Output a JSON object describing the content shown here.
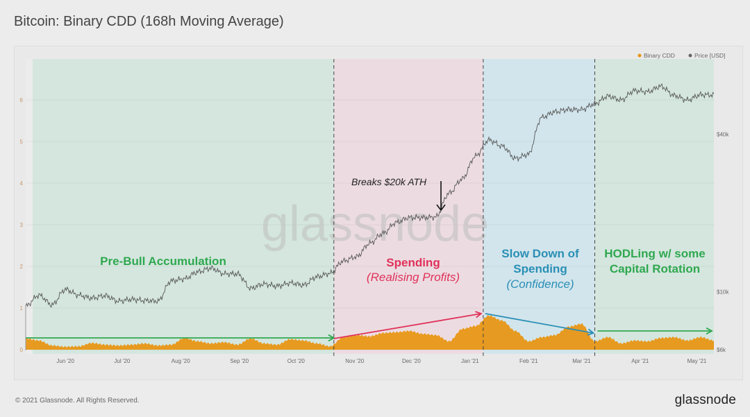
{
  "title": "Bitcoin: Binary CDD (168h Moving Average)",
  "footer": {
    "copyright": "© 2021 Glassnode. All Rights Reserved.",
    "logo": "glassnode"
  },
  "watermark": "glassnode",
  "colors": {
    "cdd": "#e8940f",
    "price": "#555555",
    "accumulation": "#2fa84f",
    "spending": "#e0315a",
    "slowdown": "#2a8fb5",
    "bg_green": "#d4e6de",
    "bg_pink": "#ecdce1",
    "bg_blue": "#d2e5ec"
  },
  "legend": [
    {
      "label": "Binary CDD",
      "color": "#e8940f"
    },
    {
      "label": "Price [USD]",
      "color": "#666666"
    }
  ],
  "annotations": {
    "ath": "Breaks $20k ATH",
    "phase1": "Pre-Bull Accumulation",
    "phase2_a": "Spending",
    "phase2_b": "(Realising Profits)",
    "phase3_a": "Slow Down of",
    "phase3_b": "Spending",
    "phase3_c": "(Confidence)",
    "phase4_a": "HODLing w/ some",
    "phase4_b": "Capital Rotation"
  },
  "chart_data": {
    "type": "area+line",
    "title": "Bitcoin: Binary CDD (168h Moving Average)",
    "x_ticks": [
      "Jun '20",
      "Jul '20",
      "Aug '20",
      "Sep '20",
      "Oct '20",
      "Nov '20",
      "Dec '20",
      "Jan '21",
      "Feb '21",
      "Mar '21",
      "Apr '21",
      "May '21"
    ],
    "x_tick_dates": [
      "2020-06-01",
      "2020-07-01",
      "2020-08-01",
      "2020-09-01",
      "2020-10-01",
      "2020-11-01",
      "2020-12-01",
      "2021-01-01",
      "2021-02-01",
      "2021-03-01",
      "2021-04-01",
      "2021-05-01"
    ],
    "xlim": [
      "2020-05-11",
      "2021-05-10"
    ],
    "left_axis": {
      "ticks": [
        "0",
        "1",
        "2",
        "3",
        "4",
        "5",
        "6"
      ],
      "ylim": [
        0,
        7
      ]
    },
    "right_axis": {
      "scale": "log",
      "ticks": [
        "$6k",
        "$10k",
        "$40k"
      ],
      "tick_values": [
        6000,
        10000,
        40000
      ]
    },
    "phase_boundaries": [
      "2020-10-21",
      "2021-01-08",
      "2021-03-08"
    ],
    "grid": true,
    "legend_position": "top-right",
    "dates": [
      "2020-05-11",
      "2020-05-18",
      "2020-05-25",
      "2020-06-01",
      "2020-06-08",
      "2020-06-15",
      "2020-06-22",
      "2020-06-29",
      "2020-07-06",
      "2020-07-13",
      "2020-07-20",
      "2020-07-27",
      "2020-08-03",
      "2020-08-10",
      "2020-08-17",
      "2020-08-24",
      "2020-08-31",
      "2020-09-07",
      "2020-09-14",
      "2020-09-21",
      "2020-09-28",
      "2020-10-05",
      "2020-10-12",
      "2020-10-19",
      "2020-10-26",
      "2020-11-02",
      "2020-11-09",
      "2020-11-16",
      "2020-11-23",
      "2020-11-30",
      "2020-12-07",
      "2020-12-14",
      "2020-12-21",
      "2020-12-28",
      "2021-01-04",
      "2021-01-11",
      "2021-01-18",
      "2021-01-25",
      "2021-02-01",
      "2021-02-08",
      "2021-02-15",
      "2021-02-22",
      "2021-03-01",
      "2021-03-08",
      "2021-03-15",
      "2021-03-22",
      "2021-03-29",
      "2021-04-05",
      "2021-04-12",
      "2021-04-19",
      "2021-04-26",
      "2021-05-03",
      "2021-05-10"
    ],
    "series": [
      {
        "name": "Binary CDD",
        "axis": "left",
        "values": [
          0.27,
          0.22,
          0.1,
          0.07,
          0.08,
          0.16,
          0.12,
          0.1,
          0.12,
          0.15,
          0.1,
          0.12,
          0.28,
          0.2,
          0.15,
          0.18,
          0.12,
          0.27,
          0.15,
          0.12,
          0.25,
          0.22,
          0.15,
          0.08,
          0.3,
          0.35,
          0.32,
          0.4,
          0.42,
          0.45,
          0.38,
          0.35,
          0.2,
          0.5,
          0.57,
          0.82,
          0.7,
          0.45,
          0.2,
          0.3,
          0.35,
          0.55,
          0.62,
          0.2,
          0.3,
          0.15,
          0.22,
          0.2,
          0.28,
          0.3,
          0.22,
          0.3,
          0.22
        ]
      },
      {
        "name": "Price [USD]",
        "axis": "right",
        "values": [
          8800,
          9700,
          8900,
          10200,
          9700,
          9450,
          9650,
          9200,
          9350,
          9250,
          9200,
          11000,
          11200,
          11900,
          12300,
          11700,
          11700,
          10300,
          10700,
          10500,
          10800,
          10600,
          11400,
          11750,
          13100,
          13600,
          15300,
          16700,
          18400,
          19200,
          19200,
          19300,
          23800,
          27000,
          33000,
          38000,
          36000,
          32300,
          33500,
          46400,
          48700,
          49700,
          49600,
          52300,
          55900,
          54000,
          58700,
          58100,
          61000,
          56200,
          54000,
          56600,
          56500
        ]
      }
    ]
  }
}
